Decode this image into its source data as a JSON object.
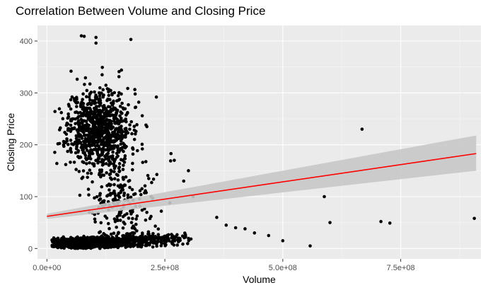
{
  "chart_data": {
    "type": "scatter",
    "title": "Correlation Between Volume and Closing Price",
    "xlabel": "Volume",
    "ylabel": "Closing Price",
    "xlim": [
      -20000000,
      920000000
    ],
    "ylim": [
      -20,
      430
    ],
    "x_ticks": [
      0,
      250000000,
      500000000,
      750000000
    ],
    "x_tick_labels": [
      "0.0e+00",
      "2.5e+08",
      "5.0e+08",
      "7.5e+08"
    ],
    "y_ticks": [
      0,
      100,
      200,
      300,
      400
    ],
    "y_tick_labels": [
      "0",
      "100",
      "200",
      "300",
      "400"
    ],
    "grid": true,
    "legend": "none",
    "colors": {
      "panel": "#ebebeb",
      "grid_major": "#ffffff",
      "point": "#000000",
      "fit_line": "#ff0000",
      "confidence_band": "#c8c8c8"
    },
    "fit": {
      "method": "linear",
      "x": [
        0,
        910000000
      ],
      "y": [
        62,
        183
      ],
      "ci_lower": [
        57,
        150
      ],
      "ci_upper": [
        67,
        218
      ]
    },
    "clusters": [
      {
        "x_center": 110000000,
        "x_spread": 60000000,
        "y_center": 230,
        "y_spread": 70,
        "count": 900,
        "seed": 11
      },
      {
        "x_center": 80000000,
        "x_spread": 70000000,
        "y_center": 10,
        "y_spread": 8,
        "count": 1100,
        "seed": 23
      },
      {
        "x_center": 200000000,
        "x_spread": 80000000,
        "y_center": 18,
        "y_spread": 12,
        "count": 300,
        "seed": 37
      },
      {
        "x_center": 160000000,
        "x_spread": 70000000,
        "y_center": 90,
        "y_spread": 60,
        "count": 180,
        "seed": 41
      }
    ],
    "points": [
      {
        "x": 73000000,
        "y": 410
      },
      {
        "x": 79000000,
        "y": 409
      },
      {
        "x": 104000000,
        "y": 407
      },
      {
        "x": 178000000,
        "y": 403
      },
      {
        "x": 104000000,
        "y": 396
      },
      {
        "x": 158000000,
        "y": 344
      },
      {
        "x": 153000000,
        "y": 341
      },
      {
        "x": 232000000,
        "y": 292
      },
      {
        "x": 210000000,
        "y": 238
      },
      {
        "x": 263000000,
        "y": 183
      },
      {
        "x": 270000000,
        "y": 170
      },
      {
        "x": 300000000,
        "y": 150
      },
      {
        "x": 290000000,
        "y": 130
      },
      {
        "x": 310000000,
        "y": 100
      },
      {
        "x": 360000000,
        "y": 60
      },
      {
        "x": 380000000,
        "y": 45
      },
      {
        "x": 400000000,
        "y": 40
      },
      {
        "x": 420000000,
        "y": 38
      },
      {
        "x": 440000000,
        "y": 30
      },
      {
        "x": 470000000,
        "y": 25
      },
      {
        "x": 500000000,
        "y": 15
      },
      {
        "x": 558000000,
        "y": 5
      },
      {
        "x": 588000000,
        "y": 100
      },
      {
        "x": 600000000,
        "y": 50
      },
      {
        "x": 668000000,
        "y": 230
      },
      {
        "x": 708000000,
        "y": 52
      },
      {
        "x": 727000000,
        "y": 49
      },
      {
        "x": 906000000,
        "y": 58
      }
    ]
  }
}
